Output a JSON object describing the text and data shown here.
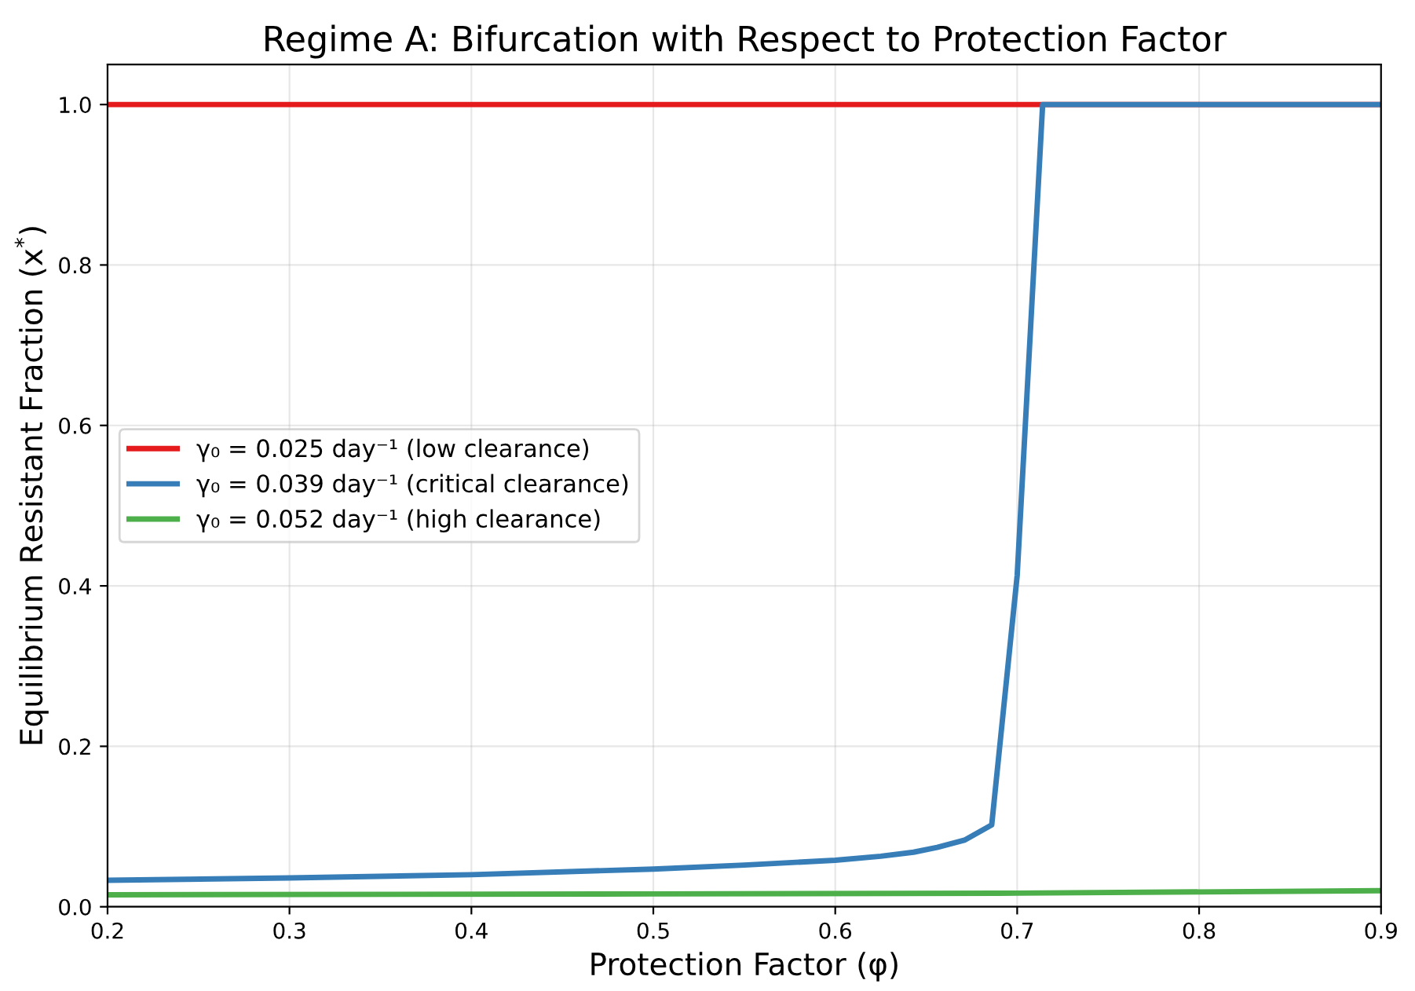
{
  "chart_data": {
    "type": "line",
    "title": "Regime A: Bifurcation with Respect to Protection Factor",
    "xlabel": "Protection Factor (φ)",
    "ylabel": "Equilibrium Resistant Fraction (x$^{*}$)",
    "series": [
      {
        "name": "γ₀ = 0.025 day⁻¹ (low clearance)",
        "color": "#e41a1c",
        "x": [
          0.2,
          0.9
        ],
        "values": [
          1.0,
          1.0
        ]
      },
      {
        "name": "γ₀ = 0.039 day⁻¹ (critical clearance)",
        "color": "#377eb8",
        "x": [
          0.2,
          0.3,
          0.4,
          0.5,
          0.55,
          0.6,
          0.625,
          0.643,
          0.656,
          0.671,
          0.686,
          0.7,
          0.714,
          0.9
        ],
        "values": [
          0.033,
          0.036,
          0.04,
          0.047,
          0.052,
          0.058,
          0.063,
          0.068,
          0.074,
          0.083,
          0.102,
          0.413,
          1.0,
          1.0
        ]
      },
      {
        "name": "γ₀ = 0.052 day⁻¹ (high clearance)",
        "color": "#4daf4a",
        "x": [
          0.2,
          0.5,
          0.7,
          0.9
        ],
        "values": [
          0.015,
          0.016,
          0.017,
          0.02
        ]
      }
    ],
    "xlim": [
      0.2,
      0.9
    ],
    "ylim": [
      0,
      1.05
    ],
    "xticks": [
      0.2,
      0.3,
      0.4,
      0.5,
      0.6,
      0.7,
      0.8,
      0.9
    ],
    "yticks": [
      {
        "value": 0,
        "label": "0.0"
      },
      0.2,
      0.4,
      0.6,
      0.8,
      {
        "value": 1,
        "label": "1.0"
      }
    ],
    "grid": true,
    "legend": "left",
    "marker": "none",
    "line_style": "solid"
  }
}
